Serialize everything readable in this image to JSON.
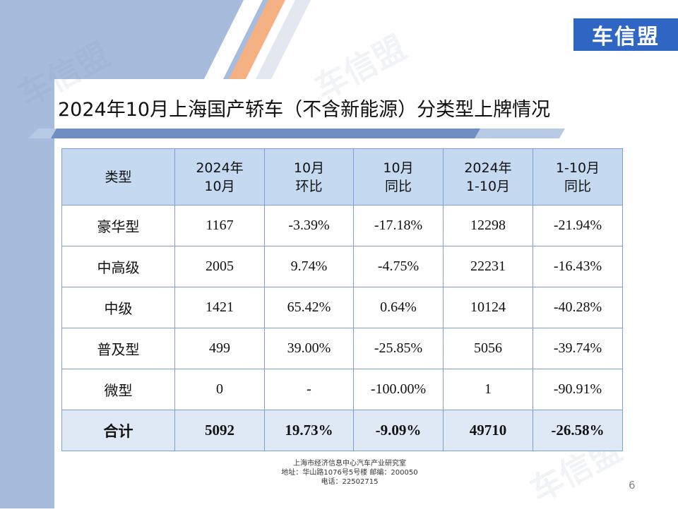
{
  "logo_text": "车信盟",
  "watermark_text": "车信盟",
  "title": "2024年10月上海国产轿车（不含新能源）分类型上牌情况",
  "table": {
    "headers": [
      [
        "类型",
        ""
      ],
      [
        "2024年",
        "10月"
      ],
      [
        "10月",
        "环比"
      ],
      [
        "10月",
        "同比"
      ],
      [
        "2024年",
        "1-10月"
      ],
      [
        "1-10月",
        "同比"
      ]
    ],
    "rows": [
      [
        "豪华型",
        "1167",
        "-3.39%",
        "-17.18%",
        "12298",
        "-21.94%"
      ],
      [
        "中高级",
        "2005",
        "9.74%",
        "-4.75%",
        "22231",
        "-16.43%"
      ],
      [
        "中级",
        "1421",
        "65.42%",
        "0.64%",
        "10124",
        "-40.28%"
      ],
      [
        "普及型",
        "499",
        "39.00%",
        "-25.85%",
        "5056",
        "-39.74%"
      ],
      [
        "微型",
        "0",
        "-",
        "-100.00%",
        "1",
        "-90.91%"
      ]
    ],
    "total": [
      "合计",
      "5092",
      "19.73%",
      "-9.09%",
      "49710",
      "-26.58%"
    ]
  },
  "footer": {
    "line1": "上海市经济信息中心汽车产业研究室",
    "line2": "地址：华山路1076号5号楼    邮编：200050",
    "line3": "电话：22502715"
  },
  "page_number": "6",
  "colors": {
    "band": "#a7bbdc",
    "accent_orange": "#f4b183",
    "header_fill": "#c5d9f1",
    "logo_blue": "#2f66c4"
  }
}
